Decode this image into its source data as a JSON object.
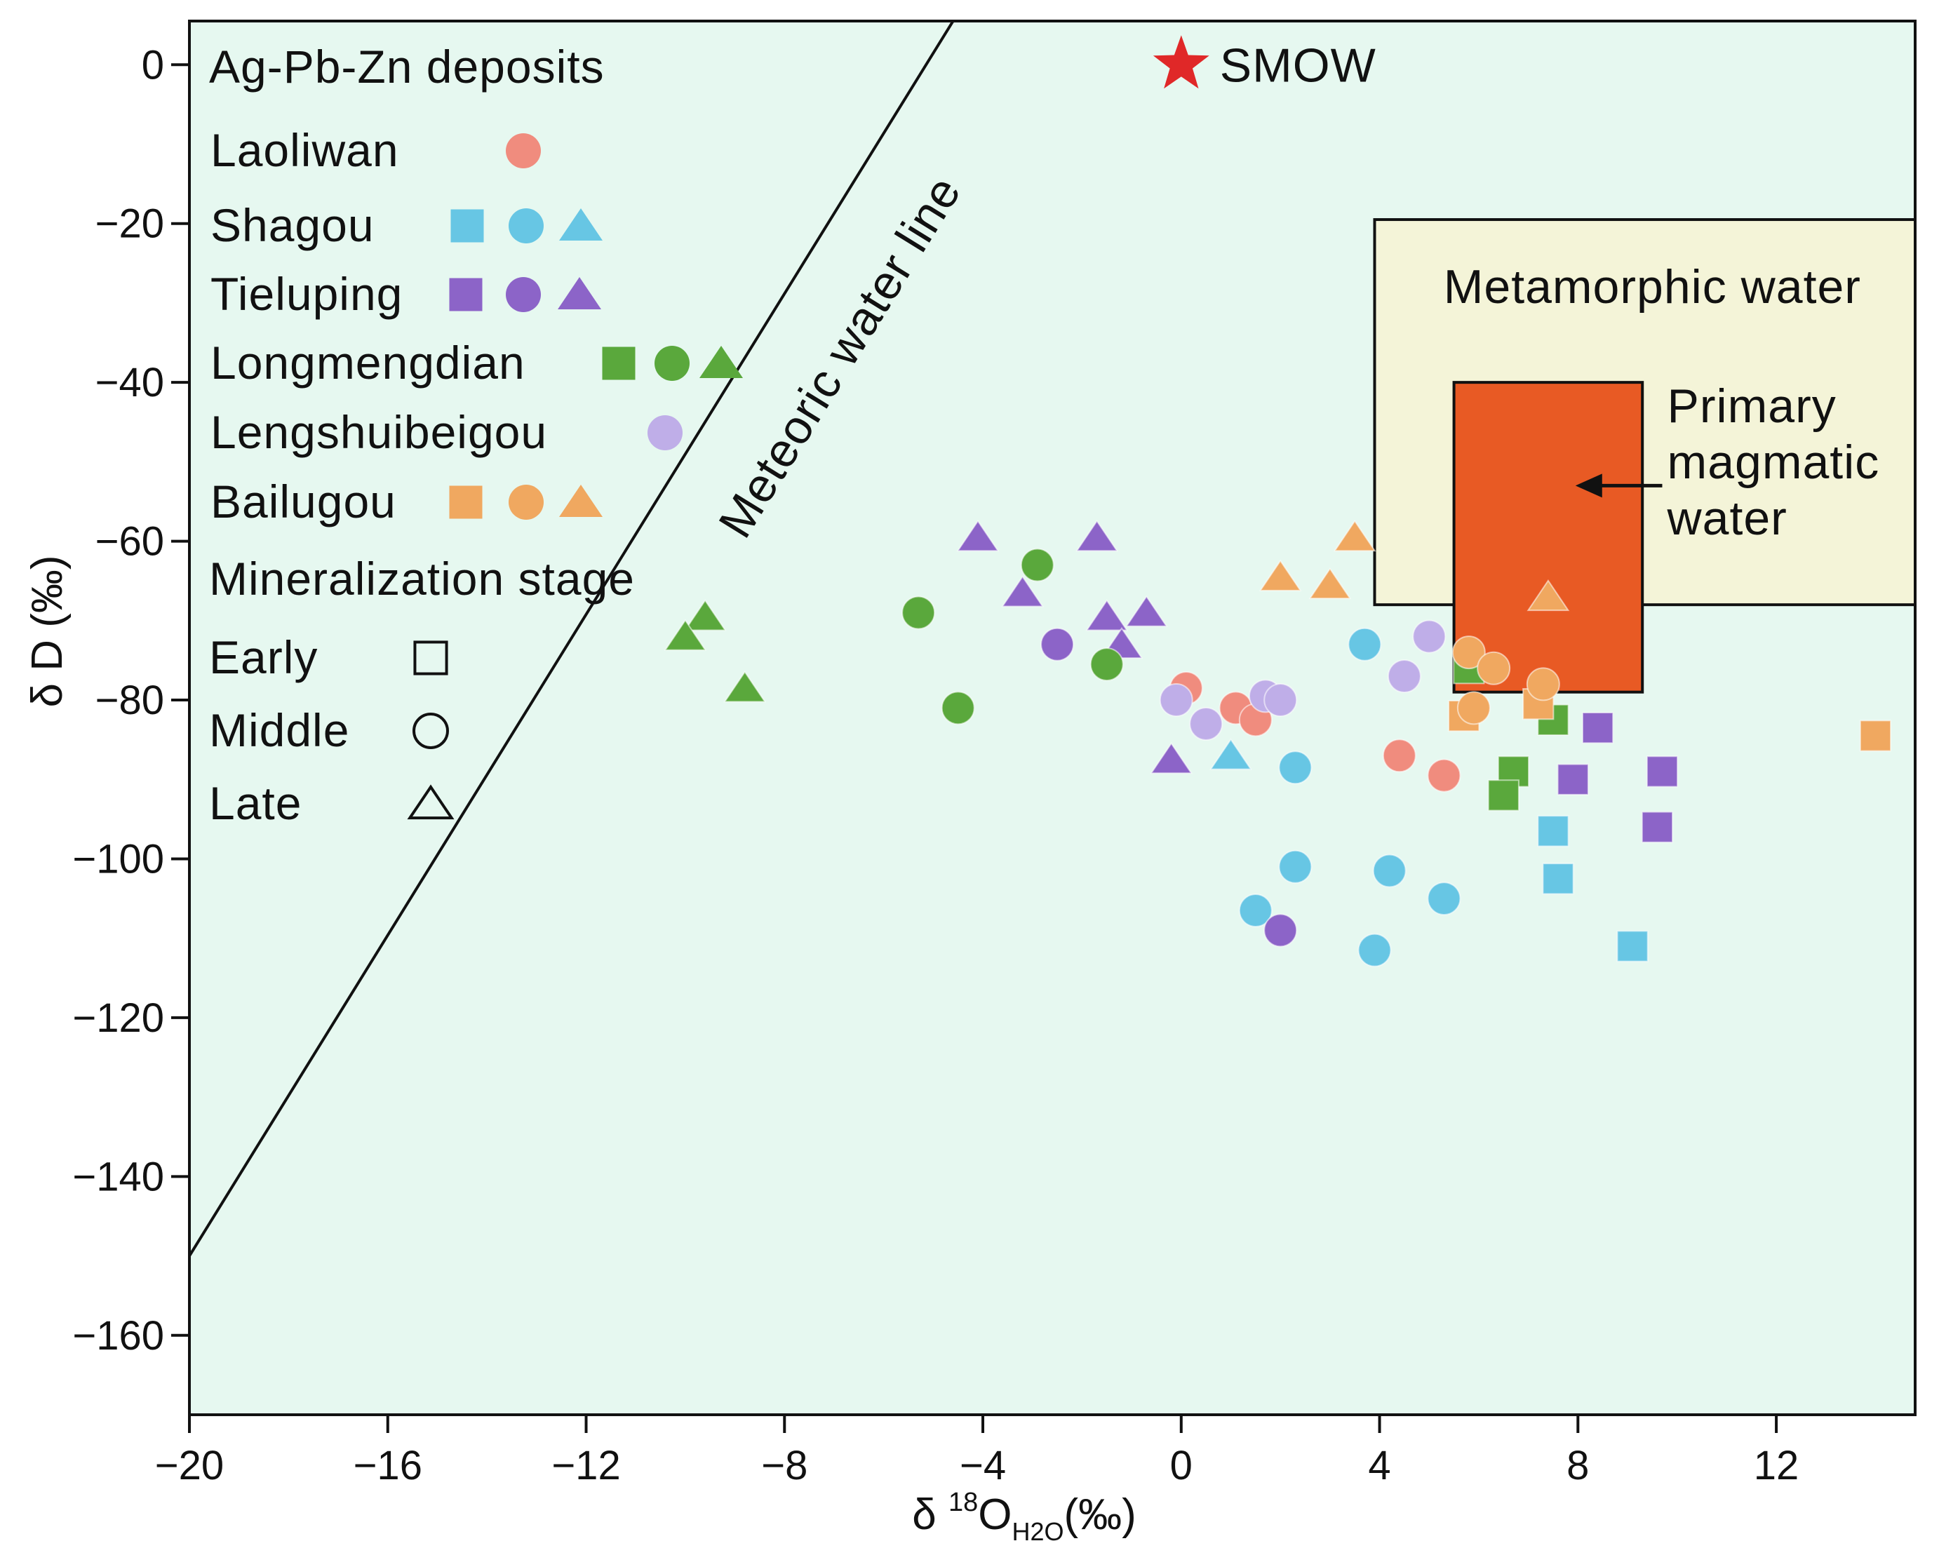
{
  "colors": {
    "background": "#e6f8f0",
    "Laoliwan": "#f08c7e",
    "Shagou": "#67c6e4",
    "Tieluping": "#8c64c8",
    "Longmengdian": "#5aa83c",
    "Lengshuibeigou": "#bfaee8",
    "Bailugou": "#f0a860",
    "metamorphic": "#f4f4d8",
    "magmatic": "#e85a24",
    "smow": "#e02828"
  },
  "chart_data": {
    "type": "scatter",
    "xlim": [
      -20,
      14.8
    ],
    "ylim": [
      -170,
      5.5
    ],
    "x_ticks": [
      -20,
      -16,
      -12,
      -8,
      -4,
      0,
      4,
      8,
      12
    ],
    "y_ticks": [
      0,
      -20,
      -40,
      -60,
      -80,
      -100,
      -120,
      -140,
      -160
    ],
    "x_tick_labels": [
      "−20",
      "−16",
      "−12",
      "−8",
      "−4",
      "0",
      "4",
      "8",
      "12"
    ],
    "y_tick_labels": [
      "0",
      "−20",
      "−40",
      "−60",
      "−80",
      "−100",
      "−120",
      "−140",
      "−160"
    ],
    "xlabel": {
      "main": "δ ",
      "sup": "18",
      "o": "O",
      "sub": "H2O",
      "unit": "(‰)"
    },
    "ylabel": "δ D (‰)",
    "grid": false,
    "meteoric_water_line": {
      "label": "Meteoric water line",
      "points": [
        [
          -20,
          -150
        ],
        [
          -4.6,
          5.5
        ]
      ],
      "label_at": [
        -8.8,
        -60
      ]
    },
    "smow": {
      "label": "SMOW",
      "x": 0,
      "y": 0
    },
    "regions": [
      {
        "name": "metamorphic",
        "label_lines": [
          "Metamorphic water"
        ],
        "x": [
          3.9,
          14.8
        ],
        "y": [
          -68,
          -19.5
        ],
        "label_at": [
          9.5,
          -30
        ]
      },
      {
        "name": "magmatic",
        "label_lines": [
          "Primary",
          "magmatic",
          "water"
        ],
        "x": [
          5.5,
          9.3
        ],
        "y": [
          -79,
          -40
        ],
        "label_at": [
          9.8,
          -45
        ],
        "arrow": {
          "from": [
            9.7,
            -53
          ],
          "to": [
            7.95,
            -53
          ]
        }
      }
    ],
    "legend": {
      "title": "Ag-Pb-Zn deposits",
      "deposits": [
        {
          "name": "Laoliwan",
          "shapes": [
            "circle"
          ]
        },
        {
          "name": "Shagou",
          "shapes": [
            "square",
            "circle",
            "triangle"
          ]
        },
        {
          "name": "Tieluping",
          "shapes": [
            "square",
            "circle",
            "triangle"
          ]
        },
        {
          "name": "Longmengdian",
          "shapes": [
            "square",
            "circle",
            "triangle"
          ]
        },
        {
          "name": "Lengshuibeigou",
          "shapes": [
            "circle"
          ]
        },
        {
          "name": "Bailugou",
          "shapes": [
            "square",
            "circle",
            "triangle"
          ]
        }
      ],
      "stage_title": "Mineralization stage",
      "stages": [
        {
          "name": "Early",
          "shape": "square"
        },
        {
          "name": "Middle",
          "shape": "circle"
        },
        {
          "name": "Late",
          "shape": "triangle"
        }
      ]
    },
    "series": [
      {
        "deposit": "Laoliwan",
        "stage": "circle",
        "points": [
          [
            0.1,
            -78.5
          ],
          [
            1.1,
            -81
          ],
          [
            1.5,
            -82.5
          ],
          [
            4.4,
            -87
          ],
          [
            5.3,
            -89.5
          ]
        ]
      },
      {
        "deposit": "Shagou",
        "stage": "square",
        "points": [
          [
            7.5,
            -96.5
          ],
          [
            7.6,
            -102.5
          ],
          [
            9.1,
            -111
          ]
        ]
      },
      {
        "deposit": "Shagou",
        "stage": "circle",
        "points": [
          [
            2.3,
            -88.5
          ],
          [
            2.3,
            -101
          ],
          [
            1.5,
            -106.5
          ],
          [
            3.7,
            -73
          ],
          [
            4.2,
            -101.5
          ],
          [
            3.9,
            -111.5
          ],
          [
            5.3,
            -105
          ]
        ]
      },
      {
        "deposit": "Shagou",
        "stage": "triangle",
        "points": [
          [
            1.0,
            -87
          ]
        ]
      },
      {
        "deposit": "Tieluping",
        "stage": "square",
        "points": [
          [
            8.4,
            -83.5
          ],
          [
            7.9,
            -90
          ],
          [
            9.7,
            -89
          ],
          [
            9.6,
            -96
          ]
        ]
      },
      {
        "deposit": "Tieluping",
        "stage": "circle",
        "points": [
          [
            -2.5,
            -73
          ],
          [
            2.0,
            -109
          ]
        ]
      },
      {
        "deposit": "Tieluping",
        "stage": "triangle",
        "points": [
          [
            -4.1,
            -59.5
          ],
          [
            -1.7,
            -59.5
          ],
          [
            -3.2,
            -66.5
          ],
          [
            -1.5,
            -69.5
          ],
          [
            -0.7,
            -69
          ],
          [
            -1.2,
            -73
          ],
          [
            -0.2,
            -87.5
          ]
        ]
      },
      {
        "deposit": "Longmengdian",
        "stage": "square",
        "points": [
          [
            5.8,
            -76
          ],
          [
            7.5,
            -82.5
          ],
          [
            6.7,
            -89
          ],
          [
            6.5,
            -92
          ]
        ]
      },
      {
        "deposit": "Longmengdian",
        "stage": "circle",
        "points": [
          [
            -2.9,
            -63
          ],
          [
            -5.3,
            -69
          ],
          [
            -1.5,
            -75.5
          ],
          [
            -4.5,
            -81
          ]
        ]
      },
      {
        "deposit": "Longmengdian",
        "stage": "triangle",
        "points": [
          [
            -9.6,
            -69.5
          ],
          [
            -10.0,
            -72
          ],
          [
            -8.8,
            -78.5
          ]
        ]
      },
      {
        "deposit": "Lengshuibeigou",
        "stage": "circle",
        "points": [
          [
            5.0,
            -72
          ],
          [
            4.5,
            -77
          ],
          [
            1.7,
            -79.5
          ],
          [
            2.0,
            -80
          ],
          [
            -0.1,
            -80
          ],
          [
            0.5,
            -83
          ]
        ]
      },
      {
        "deposit": "Bailugou",
        "stage": "square",
        "points": [
          [
            5.7,
            -82
          ],
          [
            7.2,
            -80.5
          ],
          [
            14.0,
            -84.5
          ]
        ]
      },
      {
        "deposit": "Bailugou",
        "stage": "circle",
        "points": [
          [
            5.8,
            -74
          ],
          [
            6.3,
            -76
          ],
          [
            5.9,
            -81
          ],
          [
            7.3,
            -78
          ]
        ]
      },
      {
        "deposit": "Bailugou",
        "stage": "triangle",
        "points": [
          [
            3.5,
            -59.5
          ],
          [
            2.0,
            -64.5
          ],
          [
            3.0,
            -65.5
          ],
          [
            7.4,
            -67
          ]
        ]
      }
    ]
  }
}
